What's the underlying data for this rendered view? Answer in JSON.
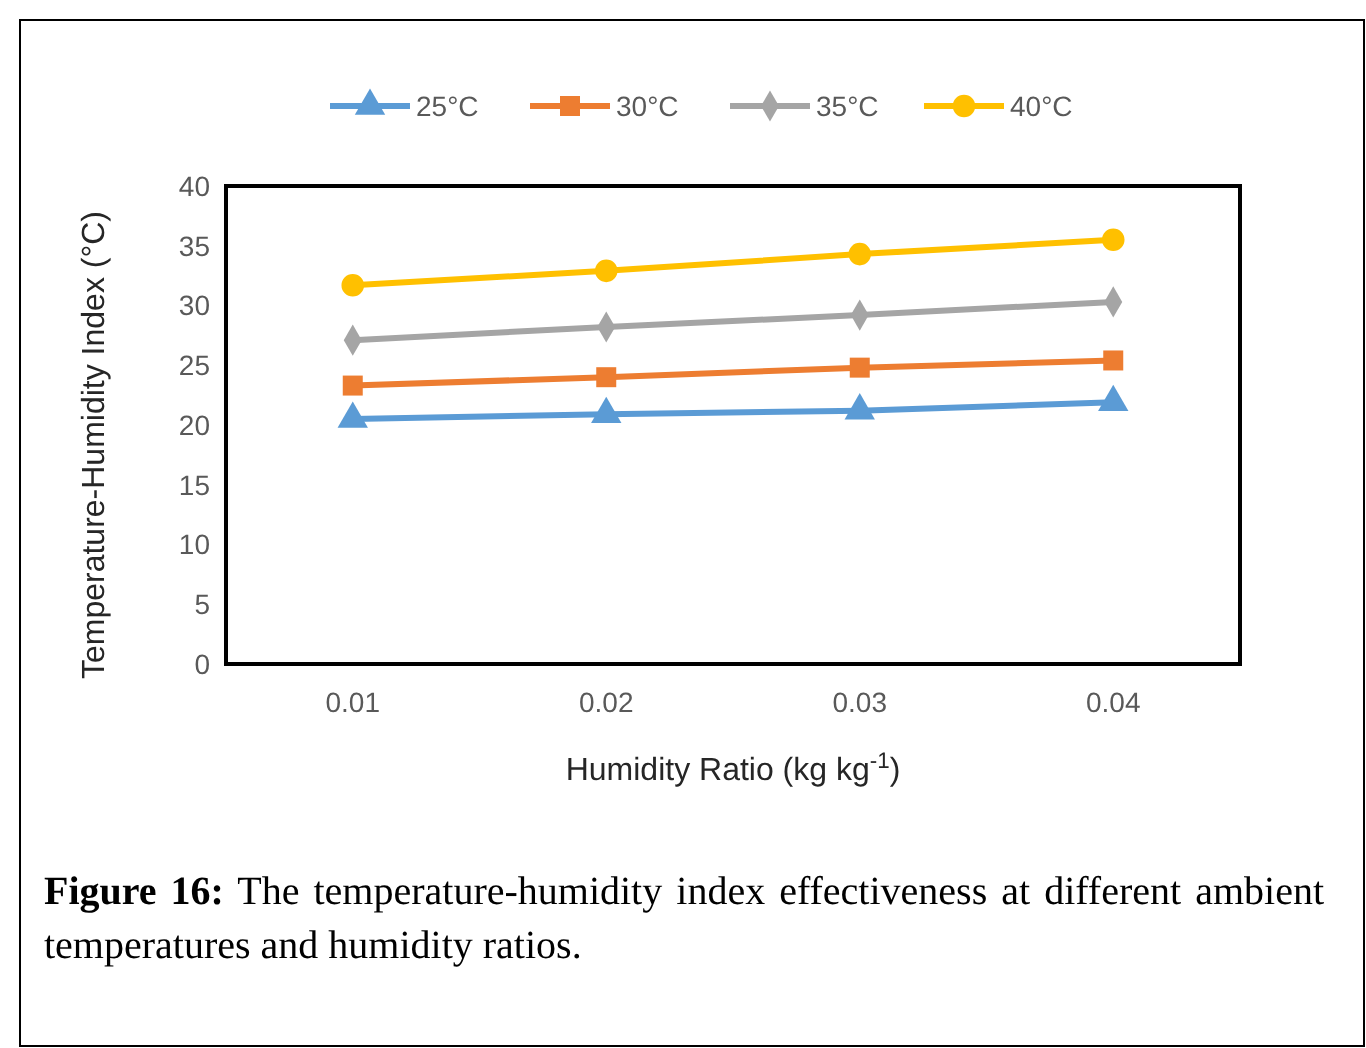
{
  "chart_data": {
    "type": "line",
    "xlabel": "Humidity Ratio (kg kg$^{-1}$)",
    "ylabel": "Temperature-Humidity Index (°C)",
    "categories": [
      "0.01",
      "0.02",
      "0.03",
      "0.04"
    ],
    "series": [
      {
        "name": "25°C",
        "color": "#5b9bd5",
        "marker": "triangle",
        "values": [
          20.5,
          20.9,
          21.2,
          21.9
        ]
      },
      {
        "name": "30°C",
        "color": "#ed7d31",
        "marker": "square",
        "values": [
          23.3,
          24.0,
          24.8,
          25.4
        ]
      },
      {
        "name": "35°C",
        "color": "#a5a5a5",
        "marker": "diamond",
        "values": [
          27.1,
          28.2,
          29.2,
          30.3
        ]
      },
      {
        "name": "40°C",
        "color": "#ffc000",
        "marker": "circle",
        "values": [
          31.7,
          32.9,
          34.3,
          35.5
        ]
      }
    ],
    "ylim": [
      0,
      40
    ],
    "yticks": [
      0,
      5,
      10,
      15,
      20,
      25,
      30,
      35,
      40
    ],
    "grid": false,
    "legend": "top",
    "line_style": "solid",
    "annotations": [
      "Figure 16: The temperature-humidity index effectiveness at different ambient temperatures and humidity ratios."
    ]
  }
}
